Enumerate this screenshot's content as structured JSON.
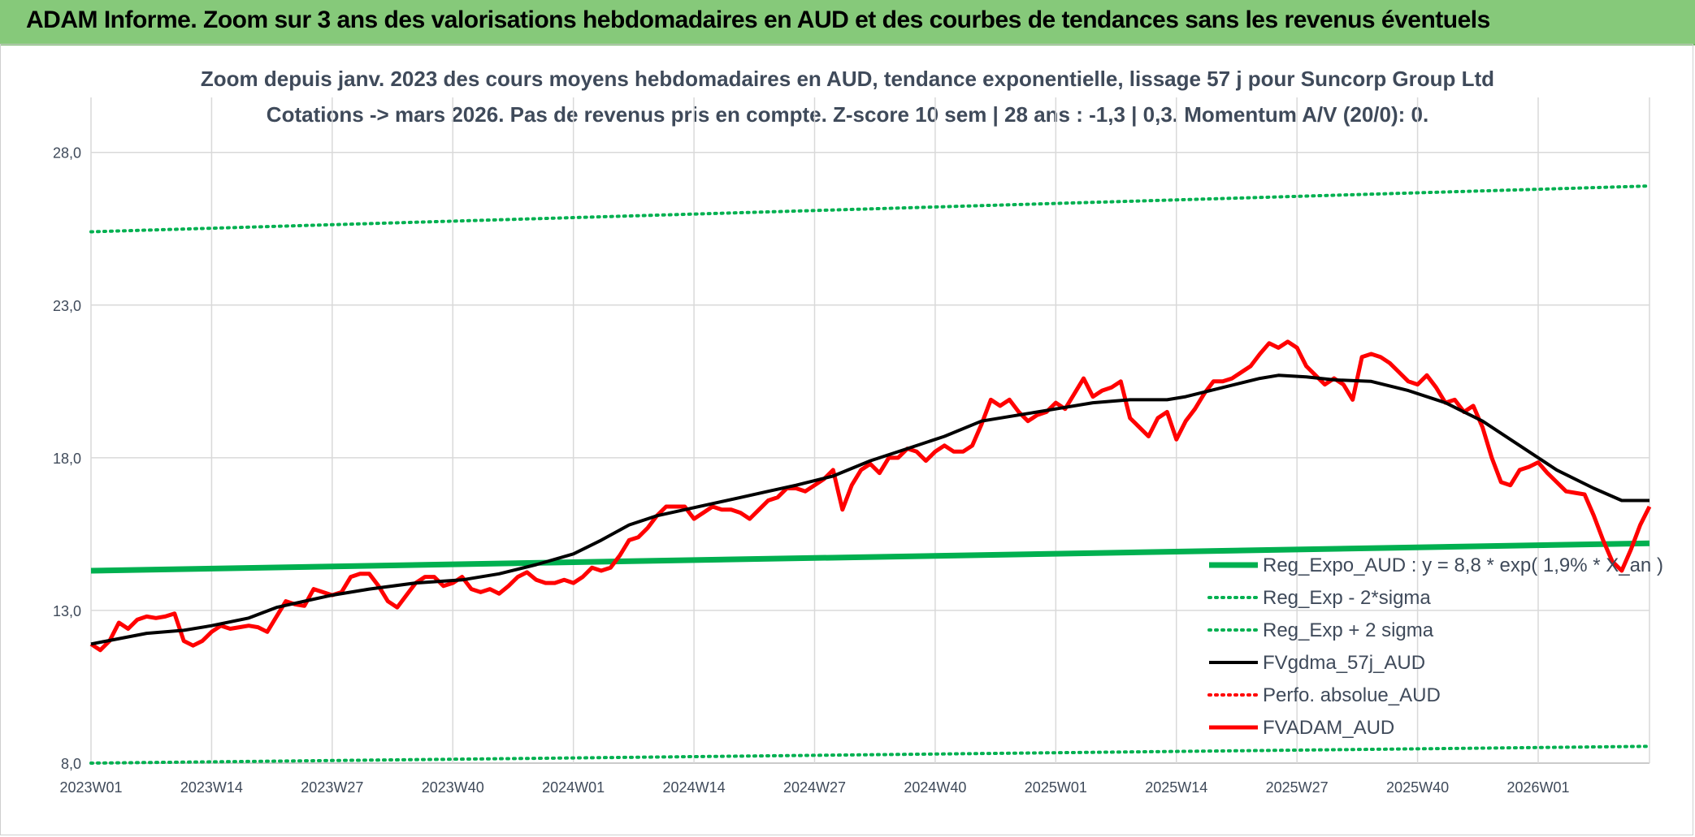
{
  "banner": {
    "title": "ADAM Informe. Zoom sur 3 ans des valorisations hebdomadaires en AUD et des courbes de tendances sans les revenus éventuels"
  },
  "chart_data": {
    "type": "line",
    "title_line1": "Zoom depuis janv. 2023 des cours moyens hebdomadaires en AUD, tendance exponentielle, lissage 57 j pour Suncorp Group Ltd",
    "title_line2": "Cotations -> mars 2026. Pas de revenus pris en compte. Z-score 10 sem | 28 ans : -1,3 | 0,3. Momentum A/V (20/0): 0.",
    "y_ticks": [
      "8,0",
      "13,0",
      "18,0",
      "23,0",
      "28,0"
    ],
    "y_tick_values": [
      8,
      13,
      18,
      23,
      28
    ],
    "ylim": [
      8,
      29.8
    ],
    "x_ticks": [
      "2023W01",
      "2023W14",
      "2023W27",
      "2023W40",
      "2024W01",
      "2024W14",
      "2024W27",
      "2024W40",
      "2025W01",
      "2025W14",
      "2025W27",
      "2025W40",
      "2026W01"
    ],
    "x_tick_weeks": [
      0,
      13,
      26,
      39,
      52,
      65,
      78,
      91,
      104,
      117,
      130,
      143,
      156
    ],
    "x_max_week": 168,
    "grid": true,
    "legend_position": "bottom-right",
    "series": [
      {
        "name": "Reg_Expo_AUD : y = 8,8 * exp( 1,9% *  X_an )",
        "color": "#00b050",
        "style": "solid-thick",
        "x": [
          0,
          168
        ],
        "values": [
          14.3,
          15.2
        ]
      },
      {
        "name": "Reg_Exp - 2*sigma",
        "color": "#00b050",
        "style": "dotted",
        "x": [
          0,
          168
        ],
        "values": [
          8.0,
          8.55
        ]
      },
      {
        "name": "Reg_Exp + 2 sigma",
        "color": "#00b050",
        "style": "dotted",
        "x": [
          0,
          168
        ],
        "values": [
          25.4,
          26.9
        ]
      },
      {
        "name": "FVgdma_57j_AUD",
        "color": "#000000",
        "style": "solid",
        "x": [
          0,
          6,
          10,
          13,
          17,
          20,
          23,
          26,
          30,
          35,
          40,
          44,
          48,
          52,
          55,
          58,
          61,
          64,
          67,
          70,
          73,
          76,
          80,
          84,
          88,
          92,
          96,
          100,
          104,
          108,
          112,
          116,
          118,
          122,
          126,
          128,
          131,
          134,
          138,
          142,
          146,
          150,
          154,
          158,
          162,
          165,
          168
        ],
        "values": [
          11.9,
          12.25,
          12.35,
          12.5,
          12.75,
          13.1,
          13.3,
          13.5,
          13.7,
          13.9,
          14.0,
          14.2,
          14.5,
          14.85,
          15.3,
          15.8,
          16.1,
          16.3,
          16.5,
          16.7,
          16.9,
          17.1,
          17.4,
          17.9,
          18.3,
          18.7,
          19.2,
          19.4,
          19.6,
          19.8,
          19.9,
          19.9,
          20.0,
          20.3,
          20.6,
          20.7,
          20.65,
          20.55,
          20.5,
          20.2,
          19.8,
          19.2,
          18.4,
          17.6,
          17.0,
          16.6,
          16.6
        ]
      },
      {
        "name": "Perfo. absolue_AUD",
        "color": "#ff0000",
        "style": "dotted",
        "x": [],
        "values": []
      },
      {
        "name": "FVADAM_AUD",
        "color": "#ff0000",
        "style": "solid-thick",
        "x": [
          0,
          1,
          2,
          3,
          4,
          5,
          6,
          7,
          8,
          9,
          10,
          11,
          12,
          13,
          14,
          15,
          16,
          17,
          18,
          19,
          20,
          21,
          22,
          23,
          24,
          25,
          26,
          27,
          28,
          29,
          30,
          31,
          32,
          33,
          34,
          35,
          36,
          37,
          38,
          39,
          40,
          41,
          42,
          43,
          44,
          45,
          46,
          47,
          48,
          49,
          50,
          51,
          52,
          53,
          54,
          55,
          56,
          57,
          58,
          59,
          60,
          61,
          62,
          63,
          64,
          65,
          66,
          67,
          68,
          69,
          70,
          71,
          72,
          73,
          74,
          75,
          76,
          77,
          78,
          79,
          80,
          81,
          82,
          83,
          84,
          85,
          86,
          87,
          88,
          89,
          90,
          91,
          92,
          93,
          94,
          95,
          96,
          97,
          98,
          99,
          100,
          101,
          102,
          103,
          104,
          105,
          106,
          107,
          108,
          109,
          110,
          111,
          112,
          113,
          114,
          115,
          116,
          117,
          118,
          119,
          120,
          121,
          122,
          123,
          124,
          125,
          126,
          127,
          128,
          129,
          130,
          131,
          132,
          133,
          134,
          135,
          136,
          137,
          138,
          139,
          140,
          141,
          142,
          143,
          144,
          145,
          146,
          147,
          148,
          149,
          150,
          151,
          152,
          153,
          154,
          155,
          156,
          157,
          158,
          159,
          160,
          161,
          162,
          163,
          164,
          165,
          166,
          167,
          168
        ],
        "values": [
          11.9,
          11.7,
          12.0,
          12.6,
          12.4,
          12.7,
          12.8,
          12.75,
          12.8,
          12.9,
          12.0,
          11.85,
          12.0,
          12.3,
          12.5,
          12.4,
          12.45,
          12.5,
          12.45,
          12.3,
          12.8,
          13.3,
          13.2,
          13.15,
          13.7,
          13.6,
          13.5,
          13.6,
          14.1,
          14.2,
          14.2,
          13.8,
          13.3,
          13.1,
          13.5,
          13.9,
          14.1,
          14.1,
          13.8,
          13.9,
          14.1,
          13.7,
          13.6,
          13.7,
          13.55,
          13.8,
          14.1,
          14.25,
          14.0,
          13.9,
          13.9,
          14.0,
          13.9,
          14.1,
          14.4,
          14.3,
          14.4,
          14.8,
          15.3,
          15.4,
          15.7,
          16.1,
          16.4,
          16.4,
          16.4,
          16.0,
          16.2,
          16.4,
          16.3,
          16.3,
          16.2,
          16.0,
          16.3,
          16.6,
          16.7,
          17.0,
          17.0,
          16.9,
          17.1,
          17.3,
          17.6,
          16.3,
          17.1,
          17.6,
          17.8,
          17.5,
          18.0,
          18.0,
          18.3,
          18.2,
          17.9,
          18.2,
          18.4,
          18.2,
          18.2,
          18.4,
          19.1,
          19.9,
          19.7,
          19.9,
          19.5,
          19.2,
          19.4,
          19.5,
          19.8,
          19.6,
          20.1,
          20.6,
          20.0,
          20.2,
          20.3,
          20.5,
          19.3,
          19.0,
          18.7,
          19.3,
          19.5,
          18.6,
          19.2,
          19.6,
          20.1,
          20.5,
          20.5,
          20.6,
          20.8,
          21.0,
          21.4,
          21.75,
          21.6,
          21.8,
          21.6,
          21.0,
          20.7,
          20.4,
          20.6,
          20.4,
          19.9,
          21.3,
          21.4,
          21.3,
          21.1,
          20.8,
          20.5,
          20.4,
          20.7,
          20.3,
          19.8,
          19.9,
          19.5,
          19.7,
          19.0,
          18.0,
          17.2,
          17.1,
          17.6,
          17.7,
          17.85,
          17.5,
          17.2,
          16.9,
          16.85,
          16.8,
          16.1,
          15.3,
          14.6,
          14.3,
          15.0,
          15.8,
          16.4
        ]
      }
    ]
  }
}
